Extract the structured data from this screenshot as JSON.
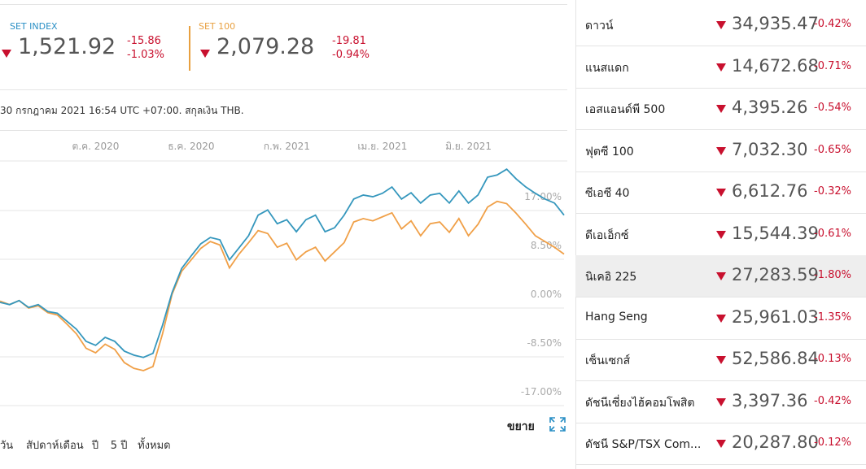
{
  "indices": [
    {
      "name": "SET INDEX",
      "value": "1,521.92",
      "change": "-15.86",
      "change_pct": "-1.03%",
      "color": "#2a8fc5"
    },
    {
      "name": "SET 100",
      "value": "2,079.28",
      "change": "-19.81",
      "change_pct": "-0.94%",
      "color": "#e8a040"
    }
  ],
  "timestamp": "30 กรกฎาคม 2021 16:54 UTC +07:00. สกุลเงิน THB.",
  "chart_data": {
    "type": "line",
    "categories": [
      null,
      null,
      null,
      null,
      null,
      null,
      null,
      null,
      null,
      null,
      "ต.ค. 2020",
      null,
      null,
      null,
      null,
      null,
      null,
      null,
      null,
      null,
      "ธ.ค. 2020",
      null,
      null,
      null,
      null,
      null,
      null,
      null,
      null,
      null,
      "ก.พ. 2021",
      null,
      null,
      null,
      null,
      null,
      null,
      null,
      null,
      null,
      "เม.ย. 2021",
      null,
      null,
      null,
      null,
      null,
      null,
      null,
      null,
      "มิ.ย. 2021",
      null,
      null,
      null,
      null,
      null,
      null,
      null,
      null,
      null,
      null
    ],
    "series": [
      {
        "name": "SET INDEX",
        "color": "#3597bd",
        "values": [
          1.0,
          0.6,
          1.3,
          0.1,
          0.6,
          -0.6,
          -0.9,
          -2.3,
          -3.7,
          -5.8,
          -6.5,
          -5.1,
          -5.8,
          -7.5,
          -8.2,
          -8.6,
          -7.9,
          -3.0,
          2.7,
          6.9,
          9.1,
          11.2,
          12.3,
          11.9,
          8.4,
          10.5,
          12.6,
          16.2,
          17.1,
          14.7,
          15.4,
          13.3,
          15.4,
          16.2,
          13.3,
          14.0,
          16.2,
          19.0,
          19.7,
          19.4,
          20.0,
          21.1,
          19.0,
          20.1,
          18.3,
          19.7,
          20.0,
          18.3,
          20.4,
          18.3,
          19.7,
          22.8,
          23.2,
          24.2,
          22.5,
          21.1,
          20.0,
          19.0,
          18.3,
          16.2
        ]
      },
      {
        "name": "SET 100",
        "color": "#f0a048",
        "values": [
          1.2,
          0.6,
          1.3,
          0.0,
          0.4,
          -0.8,
          -1.2,
          -2.8,
          -4.5,
          -7.0,
          -7.8,
          -6.3,
          -7.2,
          -9.5,
          -10.5,
          -10.9,
          -10.2,
          -4.5,
          2.4,
          6.4,
          8.4,
          10.4,
          11.6,
          11.0,
          7.0,
          9.4,
          11.4,
          13.5,
          13.0,
          10.6,
          11.3,
          8.4,
          9.8,
          10.6,
          8.2,
          9.8,
          11.4,
          15.0,
          15.6,
          15.2,
          15.9,
          16.6,
          13.8,
          15.2,
          12.6,
          14.7,
          15.0,
          13.2,
          15.6,
          12.6,
          14.6,
          17.6,
          18.6,
          18.2,
          16.5,
          14.6,
          12.6,
          11.6,
          10.6,
          9.4
        ]
      }
    ],
    "ylim": [
      -17,
      25.5
    ],
    "yticks": [
      {
        "value": 17,
        "label": "17.00%"
      },
      {
        "value": 8.5,
        "label": "8.50%"
      },
      {
        "value": 0,
        "label": "0.00%"
      },
      {
        "value": -8.5,
        "label": "-8.50%"
      },
      {
        "value": -17,
        "label": "-17.00%"
      }
    ],
    "grid": true
  },
  "expand_label": "ขยาย",
  "ranges": [
    "วัน",
    "สัปดาห์",
    "เดือน",
    "ปี",
    "5 ปี",
    "ทั้งหมด"
  ],
  "markets": [
    {
      "name": "ดาวน์",
      "value": "34,935.47",
      "change": "-0.42%"
    },
    {
      "name": "แนสแดก",
      "value": "14,672.68",
      "change": "-0.71%"
    },
    {
      "name": "เอสแอนด์พี 500",
      "value": "4,395.26",
      "change": "-0.54%"
    },
    {
      "name": "ฟุตซี 100",
      "value": "7,032.30",
      "change": "-0.65%"
    },
    {
      "name": "ซีเอซี 40",
      "value": "6,612.76",
      "change": "-0.32%"
    },
    {
      "name": "ดีเอเอ็กซ์",
      "value": "15,544.39",
      "change": "-0.61%"
    },
    {
      "name": "นิเคอิ 225",
      "value": "27,283.59",
      "change": "-1.80%"
    },
    {
      "name": "Hang Seng",
      "value": "25,961.03",
      "change": "-1.35%"
    },
    {
      "name": "เซ็นเซกส์",
      "value": "52,586.84",
      "change": "-0.13%"
    },
    {
      "name": "ดัชนีเซี่ยงไฮ้คอมโพสิต",
      "value": "3,397.36",
      "change": "-0.42%"
    },
    {
      "name": "ดัชนี S&P/TSX Com...",
      "value": "20,287.80",
      "change": "-0.12%"
    }
  ]
}
